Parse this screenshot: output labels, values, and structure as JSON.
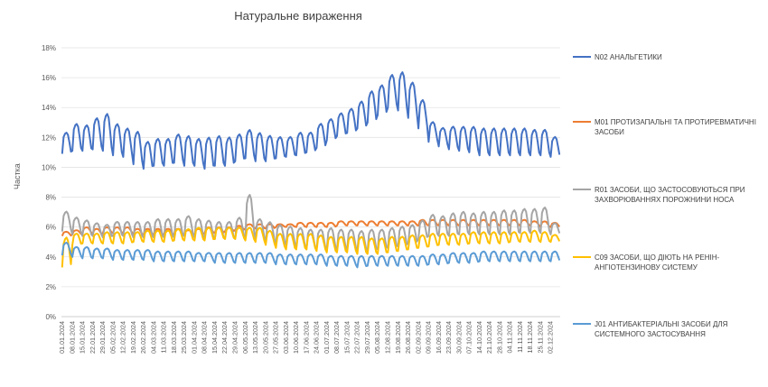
{
  "chart_data": {
    "type": "line",
    "title": "Натуральне вираження",
    "xlabel": "",
    "ylabel": "Частка",
    "ylim": [
      0,
      0.18
    ],
    "y_ticks": [
      "0%",
      "2%",
      "4%",
      "6%",
      "8%",
      "10%",
      "12%",
      "14%",
      "16%",
      "18%"
    ],
    "grid": true,
    "legend_position": "right",
    "x_tick_labels": [
      "01.01.2024",
      "08.01.2024",
      "15.01.2024",
      "22.01.2024",
      "29.01.2024",
      "05.02.2024",
      "12.02.2024",
      "19.02.2024",
      "26.02.2024",
      "04.03.2024",
      "11.03.2024",
      "18.03.2024",
      "25.03.2024",
      "01.04.2024",
      "08.04.2024",
      "15.04.2024",
      "22.04.2024",
      "29.04.2024",
      "06.05.2024",
      "13.05.2024",
      "20.05.2024",
      "27.05.2024",
      "03.06.2024",
      "10.06.2024",
      "17.06.2024",
      "24.06.2024",
      "01.07.2024",
      "08.07.2024",
      "15.07.2024",
      "22.07.2024",
      "29.07.2024",
      "05.08.2024",
      "12.08.2024",
      "19.08.2024",
      "26.08.2024",
      "02.09.2024",
      "09.09.2024",
      "16.09.2024",
      "23.09.2024",
      "30.09.2024",
      "07.10.2024",
      "14.10.2024",
      "21.10.2024",
      "28.10.2024",
      "04.11.2024",
      "11.11.2024",
      "18.11.2024",
      "25.11.2024",
      "02.12.2024"
    ],
    "series": [
      {
        "name": "N02 АНАЛЬГЕТИКИ",
        "color": "#4472C4",
        "weekly_peaks": [
          0.124,
          0.13,
          0.129,
          0.134,
          0.137,
          0.13,
          0.127,
          0.125,
          0.118,
          0.12,
          0.12,
          0.123,
          0.122,
          0.12,
          0.121,
          0.122,
          0.121,
          0.123,
          0.126,
          0.124,
          0.122,
          0.121,
          0.121,
          0.124,
          0.124,
          0.13,
          0.133,
          0.137,
          0.14,
          0.145,
          0.152,
          0.156,
          0.163,
          0.165,
          0.158,
          0.146,
          0.131,
          0.127,
          0.128,
          0.128,
          0.128,
          0.127,
          0.127,
          0.127,
          0.127,
          0.127,
          0.126,
          0.126,
          0.121
        ],
        "weekly_troughs": [
          0.109,
          0.111,
          0.111,
          0.112,
          0.111,
          0.108,
          0.107,
          0.102,
          0.099,
          0.101,
          0.101,
          0.103,
          0.101,
          0.101,
          0.099,
          0.101,
          0.101,
          0.104,
          0.106,
          0.104,
          0.104,
          0.106,
          0.107,
          0.108,
          0.11,
          0.113,
          0.118,
          0.121,
          0.123,
          0.126,
          0.13,
          0.135,
          0.14,
          0.138,
          0.133,
          0.126,
          0.117,
          0.114,
          0.112,
          0.111,
          0.11,
          0.108,
          0.108,
          0.108,
          0.108,
          0.108,
          0.108,
          0.108,
          0.107
        ]
      },
      {
        "name": "M01 ПРОТИЗАПАЛЬНІ ТА ПРОТИРЕВМАТИЧНІ ЗАСОБИ",
        "color": "#ED7D31",
        "weekly_peaks": [
          0.057,
          0.058,
          0.06,
          0.059,
          0.06,
          0.06,
          0.06,
          0.059,
          0.059,
          0.059,
          0.059,
          0.059,
          0.058,
          0.059,
          0.06,
          0.06,
          0.06,
          0.061,
          0.062,
          0.062,
          0.062,
          0.062,
          0.062,
          0.063,
          0.063,
          0.063,
          0.063,
          0.064,
          0.064,
          0.064,
          0.064,
          0.064,
          0.064,
          0.064,
          0.064,
          0.065,
          0.065,
          0.065,
          0.065,
          0.065,
          0.065,
          0.065,
          0.065,
          0.065,
          0.065,
          0.065,
          0.064,
          0.064,
          0.063
        ],
        "weekly_troughs": [
          0.054,
          0.055,
          0.056,
          0.055,
          0.056,
          0.056,
          0.056,
          0.055,
          0.055,
          0.055,
          0.055,
          0.055,
          0.055,
          0.055,
          0.056,
          0.056,
          0.057,
          0.058,
          0.059,
          0.059,
          0.059,
          0.06,
          0.06,
          0.06,
          0.06,
          0.06,
          0.06,
          0.061,
          0.061,
          0.061,
          0.061,
          0.061,
          0.061,
          0.061,
          0.061,
          0.061,
          0.061,
          0.061,
          0.061,
          0.061,
          0.061,
          0.061,
          0.061,
          0.061,
          0.061,
          0.061,
          0.061,
          0.06,
          0.06
        ]
      },
      {
        "name": "R01 ЗАСОБИ, ЩО ЗАСТОСОВУЮТЬСЯ ПРИ ЗАХВОРЮВАННЯХ ПОРОЖНИНИ НОСА",
        "color": "#A5A5A5",
        "weekly_peaks": [
          0.071,
          0.067,
          0.065,
          0.063,
          0.062,
          0.064,
          0.064,
          0.064,
          0.064,
          0.066,
          0.066,
          0.066,
          0.068,
          0.066,
          0.065,
          0.064,
          0.064,
          0.067,
          0.083,
          0.066,
          0.064,
          0.062,
          0.061,
          0.06,
          0.059,
          0.059,
          0.06,
          0.059,
          0.059,
          0.058,
          0.059,
          0.059,
          0.06,
          0.061,
          0.062,
          0.065,
          0.069,
          0.068,
          0.07,
          0.071,
          0.07,
          0.071,
          0.071,
          0.072,
          0.072,
          0.073,
          0.073,
          0.074,
          0.063
        ],
        "weekly_troughs": [
          0.057,
          0.055,
          0.054,
          0.054,
          0.053,
          0.054,
          0.054,
          0.053,
          0.053,
          0.053,
          0.053,
          0.053,
          0.054,
          0.053,
          0.052,
          0.052,
          0.052,
          0.052,
          0.054,
          0.052,
          0.05,
          0.049,
          0.048,
          0.046,
          0.045,
          0.045,
          0.045,
          0.045,
          0.045,
          0.044,
          0.044,
          0.045,
          0.046,
          0.047,
          0.049,
          0.052,
          0.054,
          0.054,
          0.054,
          0.055,
          0.055,
          0.055,
          0.055,
          0.055,
          0.055,
          0.056,
          0.056,
          0.056,
          0.055
        ]
      },
      {
        "name": "C09 ЗАСОБИ, ЩО ДІЮТЬ НА РЕНІН-АНГІОТЕНЗИНОВУ СИСТЕМУ",
        "color": "#FFC000",
        "weekly_peaks": [
          0.054,
          0.056,
          0.056,
          0.056,
          0.057,
          0.057,
          0.057,
          0.057,
          0.058,
          0.058,
          0.058,
          0.059,
          0.059,
          0.06,
          0.06,
          0.06,
          0.06,
          0.06,
          0.06,
          0.06,
          0.058,
          0.056,
          0.056,
          0.056,
          0.056,
          0.055,
          0.054,
          0.054,
          0.054,
          0.054,
          0.053,
          0.053,
          0.054,
          0.054,
          0.055,
          0.055,
          0.056,
          0.056,
          0.056,
          0.056,
          0.057,
          0.057,
          0.057,
          0.057,
          0.057,
          0.057,
          0.058,
          0.057,
          0.055
        ],
        "weekly_troughs": [
          0.033,
          0.048,
          0.049,
          0.049,
          0.049,
          0.049,
          0.049,
          0.05,
          0.05,
          0.05,
          0.05,
          0.051,
          0.051,
          0.051,
          0.051,
          0.052,
          0.052,
          0.052,
          0.051,
          0.05,
          0.048,
          0.046,
          0.045,
          0.045,
          0.045,
          0.044,
          0.043,
          0.043,
          0.043,
          0.042,
          0.042,
          0.042,
          0.043,
          0.044,
          0.045,
          0.046,
          0.047,
          0.048,
          0.048,
          0.048,
          0.049,
          0.049,
          0.049,
          0.049,
          0.05,
          0.05,
          0.05,
          0.05,
          0.05
        ]
      },
      {
        "name": "J01 АНТИБАКТЕРІАЛЬНІ ЗАСОБИ ДЛЯ СИСТЕМНОГО ЗАСТОСУВАННЯ",
        "color": "#5B9BD5",
        "weekly_peaks": [
          0.05,
          0.047,
          0.047,
          0.046,
          0.046,
          0.045,
          0.045,
          0.045,
          0.045,
          0.044,
          0.044,
          0.044,
          0.044,
          0.043,
          0.043,
          0.043,
          0.043,
          0.043,
          0.043,
          0.043,
          0.043,
          0.042,
          0.042,
          0.042,
          0.042,
          0.042,
          0.041,
          0.041,
          0.041,
          0.041,
          0.041,
          0.041,
          0.041,
          0.041,
          0.041,
          0.041,
          0.042,
          0.042,
          0.043,
          0.043,
          0.043,
          0.044,
          0.044,
          0.044,
          0.044,
          0.044,
          0.044,
          0.044,
          0.044
        ],
        "weekly_troughs": [
          0.041,
          0.04,
          0.039,
          0.039,
          0.039,
          0.038,
          0.038,
          0.038,
          0.038,
          0.037,
          0.037,
          0.037,
          0.037,
          0.037,
          0.037,
          0.036,
          0.036,
          0.036,
          0.036,
          0.036,
          0.036,
          0.035,
          0.035,
          0.035,
          0.035,
          0.035,
          0.034,
          0.034,
          0.034,
          0.033,
          0.034,
          0.034,
          0.034,
          0.034,
          0.034,
          0.034,
          0.035,
          0.035,
          0.036,
          0.036,
          0.036,
          0.037,
          0.037,
          0.037,
          0.037,
          0.037,
          0.037,
          0.037,
          0.037
        ]
      }
    ]
  }
}
